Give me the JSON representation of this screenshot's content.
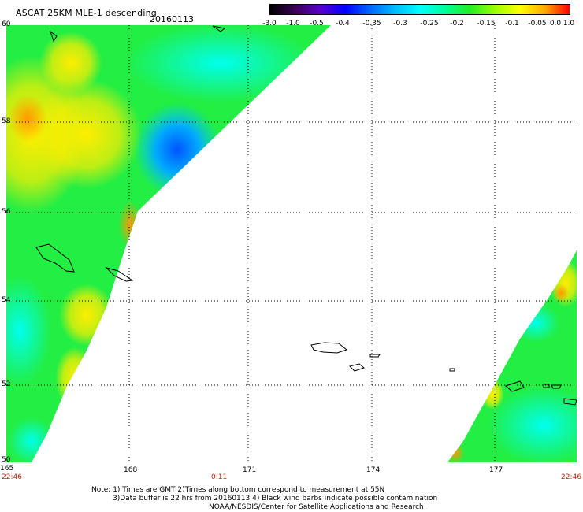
{
  "header": {
    "title": "ASCAT 25KM MLE-1 descending",
    "date": "20160113"
  },
  "colorbar": {
    "labels": [
      "-3.0",
      "-1.0",
      "-0.5",
      "-0.4",
      "-0.35",
      "-0.3",
      "-0.25",
      "-0.2",
      "-0.15",
      "-0.1",
      "-0.05",
      "0.0",
      "1.0"
    ],
    "colors": [
      "#000000",
      "#3a0055",
      "#5a00cc",
      "#0000ff",
      "#0066ff",
      "#00bbff",
      "#00ffff",
      "#00ff99",
      "#22ee22",
      "#99ff00",
      "#ffff00",
      "#ffaa00",
      "#ff0000"
    ]
  },
  "axes": {
    "lat_labels": [
      "60",
      "58",
      "56",
      "54",
      "52",
      "50"
    ],
    "lon_labels": [
      "165",
      "168",
      "171",
      "174",
      "177"
    ]
  },
  "times": {
    "left": "22:46",
    "mid": "0:11",
    "right": "22:46"
  },
  "notes": {
    "line1": "Note: 1) Times are GMT 2)Times along bottom correspond to measurement at 55N",
    "line2": "3)Data buffer is 22 hrs from 20160113 4) Black wind barbs indicate possible contamination",
    "line3": "NOAA/NESDIS/Center for Satellite Applications and Research"
  }
}
